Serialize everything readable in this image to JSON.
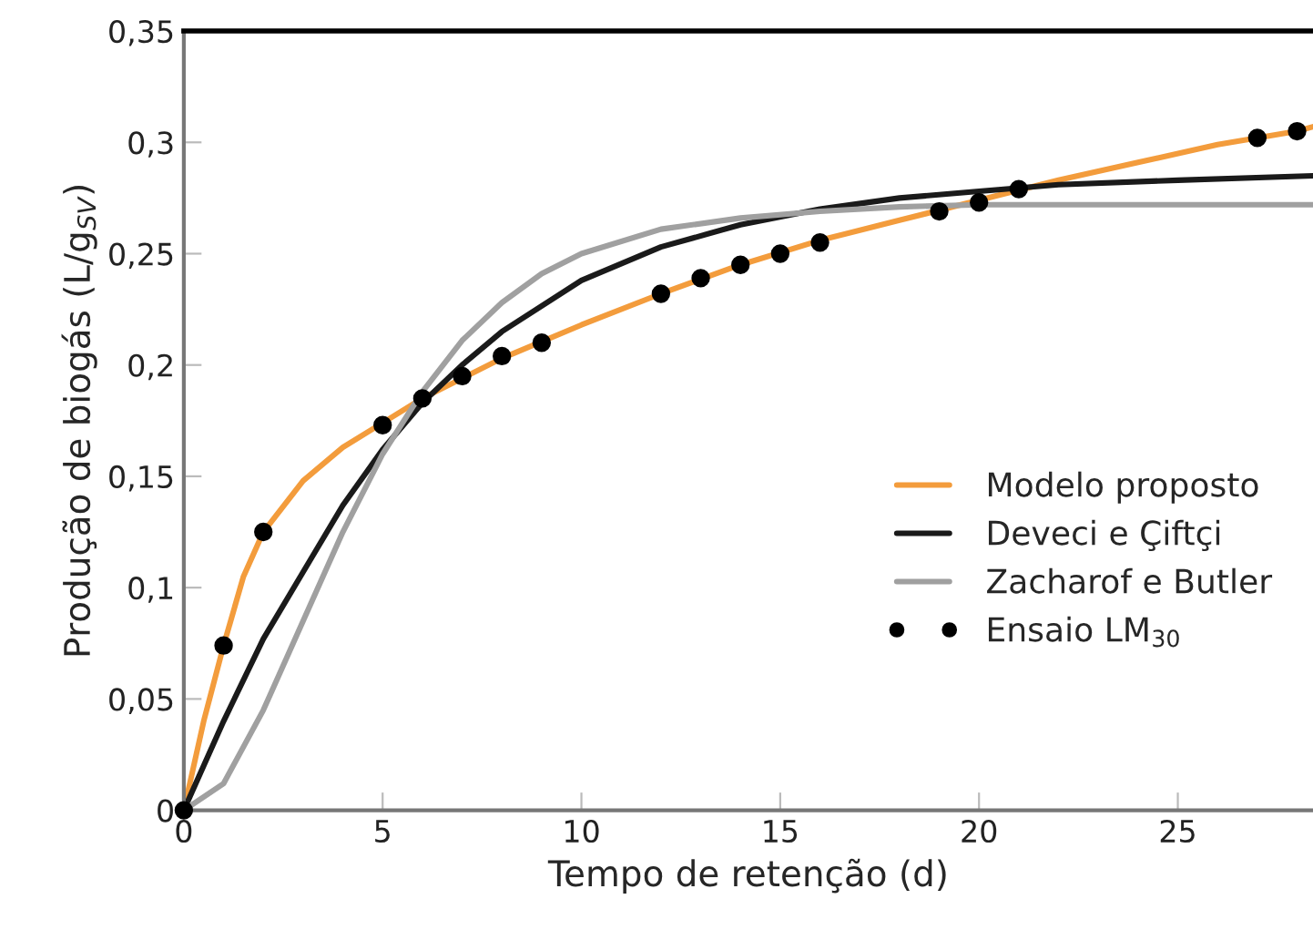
{
  "chart_data": {
    "type": "line",
    "xlabel": "Tempo de retenção (d)",
    "ylabel": "Produção de biogás (L/g$_{SV}$)",
    "xlim": [
      0,
      28.4
    ],
    "ylim": [
      0,
      0.35
    ],
    "xticks": [
      0,
      5,
      10,
      15,
      20,
      25
    ],
    "yticks": [
      0,
      {
        "value": 0.05,
        "label": "0,05"
      },
      {
        "value": 0.1,
        "label": "0,1"
      },
      {
        "value": 0.15,
        "label": "0,15"
      },
      {
        "value": 0.2,
        "label": "0,2"
      },
      {
        "value": 0.25,
        "label": "0,25"
      },
      {
        "value": 0.3,
        "label": "0,3"
      },
      {
        "value": 0.35,
        "label": "0,35"
      }
    ],
    "grid": false,
    "legend": "bottom right",
    "series": [
      {
        "name": "Modelo proposto",
        "color": "#f39c3c",
        "marker": "none",
        "x": [
          0,
          0.5,
          1,
          1.5,
          2,
          3,
          4,
          5,
          6,
          8,
          10,
          12,
          14,
          16,
          18,
          20,
          22,
          24,
          26,
          28,
          28.4
        ],
        "values": [
          0,
          0.04,
          0.074,
          0.105,
          0.125,
          0.148,
          0.163,
          0.174,
          0.185,
          0.203,
          0.218,
          0.232,
          0.245,
          0.256,
          0.265,
          0.274,
          0.283,
          0.291,
          0.299,
          0.305,
          0.307
        ]
      },
      {
        "name": "Deveci e Çiftçi",
        "color": "#1a1a1a",
        "marker": "none",
        "x": [
          0,
          1,
          2,
          3,
          4,
          5,
          6,
          7,
          8,
          10,
          12,
          14,
          16,
          18,
          20,
          22,
          25,
          28.4
        ],
        "values": [
          0,
          0.04,
          0.077,
          0.107,
          0.137,
          0.162,
          0.183,
          0.2,
          0.215,
          0.238,
          0.253,
          0.263,
          0.27,
          0.275,
          0.278,
          0.281,
          0.283,
          0.285
        ]
      },
      {
        "name": "Zacharof e Butler",
        "color": "#a0a0a0",
        "marker": "none",
        "x": [
          0,
          1,
          2,
          3,
          4,
          5,
          6,
          7,
          8,
          9,
          10,
          12,
          14,
          16,
          18,
          20,
          28.4
        ],
        "values": [
          0,
          0.012,
          0.045,
          0.085,
          0.125,
          0.16,
          0.188,
          0.211,
          0.228,
          0.241,
          0.25,
          0.261,
          0.266,
          0.269,
          0.271,
          0.272,
          0.272
        ]
      },
      {
        "name": "Ensaio LM$_{30}$",
        "type": "scatter",
        "color": "#000000",
        "marker": "circle",
        "x": [
          0,
          1,
          2,
          5,
          6,
          7,
          8,
          9,
          12,
          13,
          14,
          15,
          16,
          19,
          20,
          21,
          27,
          28
        ],
        "values": [
          0,
          0.074,
          0.125,
          0.173,
          0.185,
          0.195,
          0.204,
          0.21,
          0.232,
          0.239,
          0.245,
          0.25,
          0.255,
          0.269,
          0.273,
          0.279,
          0.302,
          0.305
        ]
      }
    ]
  }
}
